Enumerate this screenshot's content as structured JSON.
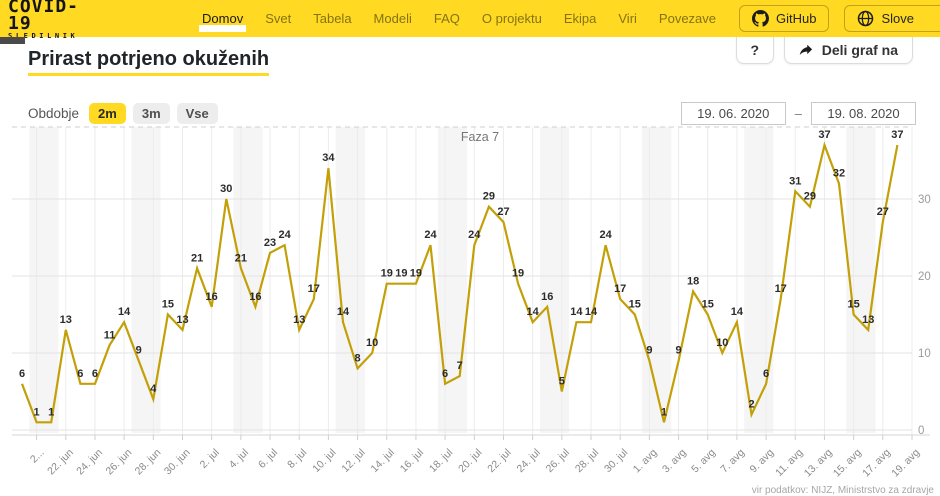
{
  "header": {
    "logo_line1": "COVID-19",
    "logo_line2": "SLEDILNIK",
    "nav": [
      {
        "label": "Domov",
        "active": true
      },
      {
        "label": "Svet"
      },
      {
        "label": "Tabela"
      },
      {
        "label": "Modeli"
      },
      {
        "label": "FAQ"
      },
      {
        "label": "O projektu"
      },
      {
        "label": "Ekipa"
      },
      {
        "label": "Viri"
      },
      {
        "label": "Povezave"
      }
    ],
    "github_label": "GitHub",
    "language_label": "Slove"
  },
  "page": {
    "title": "Prirast potrjeno okuženih",
    "help_button": "?",
    "share_button": "Deli graf na"
  },
  "controls": {
    "period_label": "Obdobje",
    "periods": [
      "2m",
      "3m",
      "Vse"
    ],
    "active_period": "2m",
    "date_from": "19. 06. 2020",
    "date_separator": "–",
    "date_to": "19. 08. 2020"
  },
  "chart_data": {
    "type": "line",
    "title": "Prirast potrjeno okuženih",
    "annotation": "Faza 7",
    "line_color": "#c3a008",
    "label_color": "#2b2b2b",
    "weekend_band_color": "#f5f5f5",
    "ylim": [
      0,
      40
    ],
    "y_ticks": [
      0,
      10,
      20,
      30
    ],
    "grid": true,
    "legend_position": "none",
    "x_tick_labels": [
      "2...",
      "22. jun",
      "24. jun",
      "26. jun",
      "28. jun",
      "30. jun",
      "2. jul",
      "4. jul",
      "6. jul",
      "8. jul",
      "10. jul",
      "12. jul",
      "14. jul",
      "16. jul",
      "18. jul",
      "20. jul",
      "22. jul",
      "24. jul",
      "26. jul",
      "28. jul",
      "30. jul",
      "1. avg",
      "3. avg",
      "5. avg",
      "7. avg",
      "9. avg",
      "11. avg",
      "13. avg",
      "15. avg",
      "17. avg",
      "19. avg"
    ],
    "x_dates": [
      "19. jun",
      "20. jun",
      "21. jun",
      "22. jun",
      "23. jun",
      "24. jun",
      "25. jun",
      "26. jun",
      "27. jun",
      "28. jun",
      "29. jun",
      "30. jun",
      "1. jul",
      "2. jul",
      "3. jul",
      "4. jul",
      "5. jul",
      "6. jul",
      "7. jul",
      "8. jul",
      "9. jul",
      "10. jul",
      "11. jul",
      "12. jul",
      "13. jul",
      "14. jul",
      "15. jul",
      "16. jul",
      "17. jul",
      "18. jul",
      "19. jul",
      "20. jul",
      "21. jul",
      "22. jul",
      "23. jul",
      "24. jul",
      "25. jul",
      "26. jul",
      "27. jul",
      "28. jul",
      "29. jul",
      "30. jul",
      "31. jul",
      "1. avg",
      "2. avg",
      "3. avg",
      "4. avg",
      "5. avg",
      "6. avg",
      "7. avg",
      "8. avg",
      "9. avg",
      "10. avg",
      "11. avg",
      "12. avg",
      "13. avg",
      "14. avg",
      "15. avg",
      "16. avg",
      "17. avg",
      "18. avg"
    ],
    "values": [
      6,
      1,
      1,
      13,
      6,
      6,
      11,
      14,
      9,
      4,
      15,
      13,
      21,
      16,
      30,
      21,
      16,
      23,
      24,
      13,
      17,
      34,
      14,
      8,
      10,
      19,
      19,
      19,
      24,
      6,
      7,
      24,
      29,
      27,
      19,
      14,
      16,
      5,
      14,
      14,
      24,
      17,
      15,
      9,
      1,
      9,
      18,
      15,
      10,
      14,
      2,
      6,
      17,
      31,
      29,
      37,
      32,
      15,
      13,
      27,
      37
    ]
  },
  "footer": {
    "source": "vir podatkov: NIJZ, Ministrstvo za zdravje"
  }
}
